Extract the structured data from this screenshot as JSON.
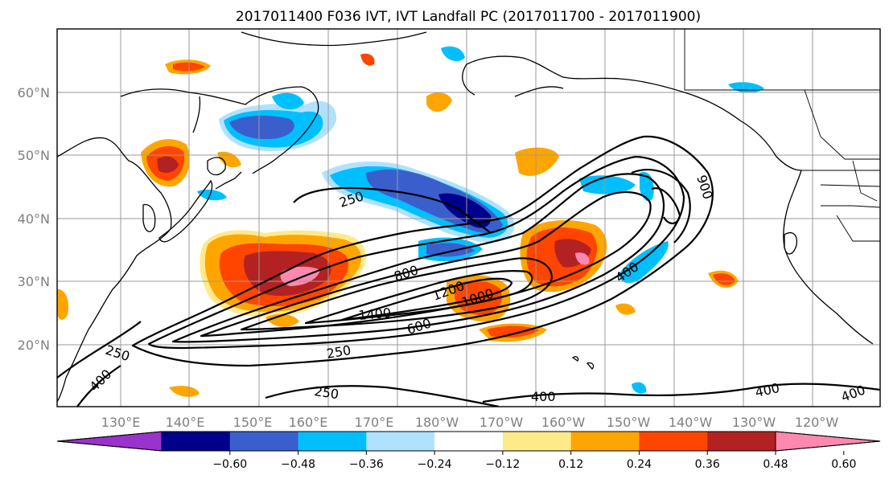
{
  "title": "2017011400 F036 IVT, IVT Landfall PC (2017011700 - 2017011900)",
  "map": {
    "lon_labels": [
      "130°E",
      "140°E",
      "150°E",
      "160°E",
      "170°E",
      "180°W",
      "170°W",
      "160°W",
      "150°W",
      "140°W",
      "130°W",
      "120°W"
    ],
    "lat_labels": [
      "60°N",
      "50°N",
      "40°N",
      "30°N",
      "20°N"
    ],
    "gridlines": true,
    "contour_labels": [
      "250",
      "250",
      "250",
      "250",
      "400",
      "400",
      "400",
      "400",
      "600",
      "800",
      "900",
      "1000",
      "1200",
      "1400"
    ]
  },
  "colorbar": {
    "ticks": [
      "−0.60",
      "−0.48",
      "−0.36",
      "−0.24",
      "−0.12",
      "0.12",
      "0.24",
      "0.36",
      "0.48",
      "0.60"
    ],
    "colors": [
      "#9933cc",
      "#00008b",
      "#3a5fcd",
      "#00bfff",
      "#b0e2ff",
      "#ffffff",
      "#ffea8a",
      "#ffa500",
      "#ff4500",
      "#b22222",
      "#ff88b0"
    ],
    "extend": "both"
  },
  "fill_colors": {
    "pink": "#ff88b0",
    "darkred": "#b22222",
    "red": "#ff4500",
    "orange": "#ffa500",
    "yellow": "#ffea8a",
    "lightblue": "#b0e2ff",
    "cyan": "#00bfff",
    "blue": "#3a5fcd",
    "navy": "#00008b"
  }
}
